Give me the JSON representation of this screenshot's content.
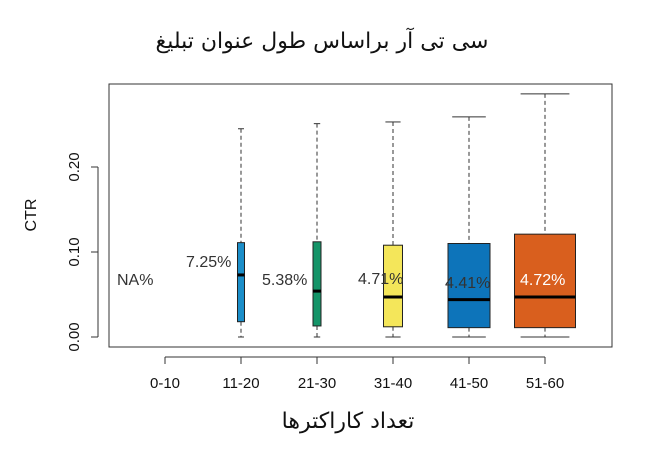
{
  "chart_data": {
    "type": "boxplot",
    "title": "سی تی آر براساس طول عنوان تبلیغ",
    "xlabel": "تعداد کاراکترها",
    "ylabel": "CTR",
    "ylim": [
      -0.02,
      0.3
    ],
    "yticks": [
      "0.00",
      "0.10",
      "0.20"
    ],
    "ytick_values": [
      0,
      0.1,
      0.2
    ],
    "grid": false,
    "categories": [
      "0-10",
      "11-20",
      "21-30",
      "31-40",
      "41-50",
      "51-60"
    ],
    "boxes": [
      {
        "category": "0-10",
        "label": "NA%",
        "color": null,
        "min": null,
        "q1": null,
        "median": null,
        "q3": null,
        "max": null
      },
      {
        "category": "11-20",
        "label": "7.25%",
        "color": "#1b8ec9",
        "min": 0.0,
        "q1": 0.018,
        "median": 0.073,
        "q3": 0.111,
        "max": 0.245
      },
      {
        "category": "21-30",
        "label": "5.38%",
        "color": "#149468",
        "min": 0.0,
        "q1": 0.013,
        "median": 0.054,
        "q3": 0.112,
        "max": 0.251
      },
      {
        "category": "31-40",
        "label": "4.71%",
        "color": "#f4e65a",
        "min": 0.0,
        "q1": 0.012,
        "median": 0.047,
        "q3": 0.108,
        "max": 0.253
      },
      {
        "category": "41-50",
        "label": "4.41%",
        "color": "#0d74ba",
        "min": 0.0,
        "q1": 0.011,
        "median": 0.044,
        "q3": 0.11,
        "max": 0.259
      },
      {
        "category": "51-60",
        "label": "4.72%",
        "color": "#d95f1e",
        "min": 0.0,
        "q1": 0.011,
        "median": 0.047,
        "q3": 0.121,
        "max": 0.286
      }
    ]
  }
}
